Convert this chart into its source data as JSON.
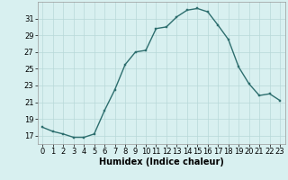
{
  "x": [
    0,
    1,
    2,
    3,
    4,
    5,
    6,
    7,
    8,
    9,
    10,
    11,
    12,
    13,
    14,
    15,
    16,
    17,
    18,
    19,
    20,
    21,
    22,
    23
  ],
  "y": [
    18.0,
    17.5,
    17.2,
    16.8,
    16.8,
    17.2,
    20.0,
    22.5,
    25.5,
    27.0,
    27.2,
    29.8,
    30.0,
    31.2,
    32.0,
    32.2,
    31.8,
    30.2,
    28.5,
    25.2,
    23.2,
    21.8,
    22.0,
    21.2
  ],
  "line_color": "#2d6e6e",
  "marker_color": "#2d6e6e",
  "bg_color": "#d8f0f0",
  "grid_color": "#b8d8d8",
  "xlabel": "Humidex (Indice chaleur)",
  "xlim": [
    -0.5,
    23.5
  ],
  "ylim": [
    16.0,
    33.0
  ],
  "yticks": [
    17,
    19,
    21,
    23,
    25,
    27,
    29,
    31
  ],
  "xticks": [
    0,
    1,
    2,
    3,
    4,
    5,
    6,
    7,
    8,
    9,
    10,
    11,
    12,
    13,
    14,
    15,
    16,
    17,
    18,
    19,
    20,
    21,
    22,
    23
  ],
  "xlabel_fontsize": 7.0,
  "tick_fontsize": 6.0,
  "line_width": 1.0,
  "marker_size": 2.0
}
